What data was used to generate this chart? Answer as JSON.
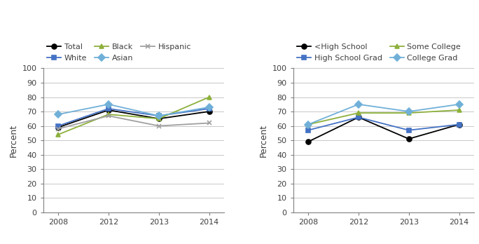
{
  "years": [
    2008,
    2012,
    2013,
    2014
  ],
  "x_positions": [
    0,
    1,
    2,
    3
  ],
  "x_labels": [
    "2008",
    "2012",
    "2013",
    "2014"
  ],
  "left_chart": {
    "series": [
      {
        "label": "Total",
        "color": "#000000",
        "marker": "o",
        "values": [
          59,
          71,
          65,
          70
        ]
      },
      {
        "label": "White",
        "color": "#4472C4",
        "marker": "s",
        "values": [
          60,
          72,
          67,
          72
        ]
      },
      {
        "label": "Black",
        "color": "#8DB03B",
        "marker": "^",
        "values": [
          54,
          68,
          65,
          80
        ]
      },
      {
        "label": "Asian",
        "color": "#70B0D8",
        "marker": "D",
        "values": [
          68,
          75,
          67,
          73
        ]
      },
      {
        "label": "Hispanic",
        "color": "#A0A0A0",
        "marker": "x",
        "values": [
          58,
          67,
          60,
          62
        ]
      }
    ],
    "legend_order": [
      0,
      1,
      2,
      3,
      4
    ],
    "legend_ncol": 3,
    "ylabel": "Percent",
    "ylim": [
      0,
      100
    ],
    "yticks": [
      0,
      10,
      20,
      30,
      40,
      50,
      60,
      70,
      80,
      90,
      100
    ]
  },
  "right_chart": {
    "series": [
      {
        "label": "<High School",
        "color": "#000000",
        "marker": "o",
        "values": [
          49,
          66,
          51,
          61
        ]
      },
      {
        "label": "High School Grad",
        "color": "#4472C4",
        "marker": "s",
        "values": [
          57,
          66,
          57,
          61
        ]
      },
      {
        "label": "Some College",
        "color": "#8DB03B",
        "marker": "^",
        "values": [
          61,
          69,
          69,
          71
        ]
      },
      {
        "label": "College Grad",
        "color": "#70B0D8",
        "marker": "D",
        "values": [
          61,
          75,
          70,
          75
        ]
      }
    ],
    "legend_order": [
      0,
      1,
      2,
      3
    ],
    "legend_ncol": 2,
    "ylabel": "Percent",
    "ylim": [
      0,
      100
    ],
    "yticks": [
      0,
      10,
      20,
      30,
      40,
      50,
      60,
      70,
      80,
      90,
      100
    ]
  },
  "axis_color": "#808080",
  "grid_color": "#C8C8C8",
  "text_color": "#404040",
  "tick_fontsize": 8,
  "label_fontsize": 9,
  "legend_fontsize": 8
}
